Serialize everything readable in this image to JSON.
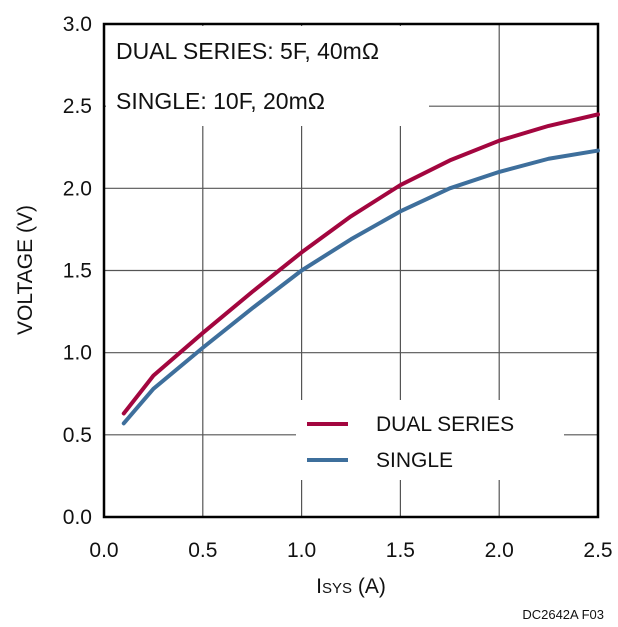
{
  "chart_data": {
    "type": "line",
    "xlabel_main": "I",
    "xlabel_sub": "SYS",
    "xlabel_unit": " (A)",
    "ylabel": "VOLTAGE (V)",
    "xlim": [
      0,
      2.5
    ],
    "ylim": [
      0,
      3.0
    ],
    "xticks": [
      "0.0",
      "0.5",
      "1.0",
      "1.5",
      "2.0",
      "2.5"
    ],
    "yticks": [
      "0.0",
      "0.5",
      "1.0",
      "1.5",
      "2.0",
      "2.5",
      "3.0"
    ],
    "grid": true,
    "annotations": [
      "DUAL SERIES: 5F, 40mΩ",
      "SINGLE: 10F, 20mΩ"
    ],
    "legend_placement": "lower-right",
    "series": [
      {
        "name": "DUAL SERIES",
        "color": "#a3063f",
        "x": [
          0.1,
          0.25,
          0.5,
          0.75,
          1.0,
          1.25,
          1.5,
          1.75,
          2.0,
          2.25,
          2.5
        ],
        "y": [
          0.63,
          0.86,
          1.12,
          1.37,
          1.61,
          1.83,
          2.02,
          2.17,
          2.29,
          2.38,
          2.45
        ]
      },
      {
        "name": "SINGLE",
        "color": "#3e6f9c",
        "x": [
          0.1,
          0.25,
          0.5,
          0.75,
          1.0,
          1.25,
          1.5,
          1.75,
          2.0,
          2.25,
          2.5
        ],
        "y": [
          0.57,
          0.78,
          1.03,
          1.27,
          1.5,
          1.69,
          1.86,
          2.0,
          2.1,
          2.18,
          2.23
        ]
      }
    ]
  },
  "figure_id": "DC2642A F03"
}
